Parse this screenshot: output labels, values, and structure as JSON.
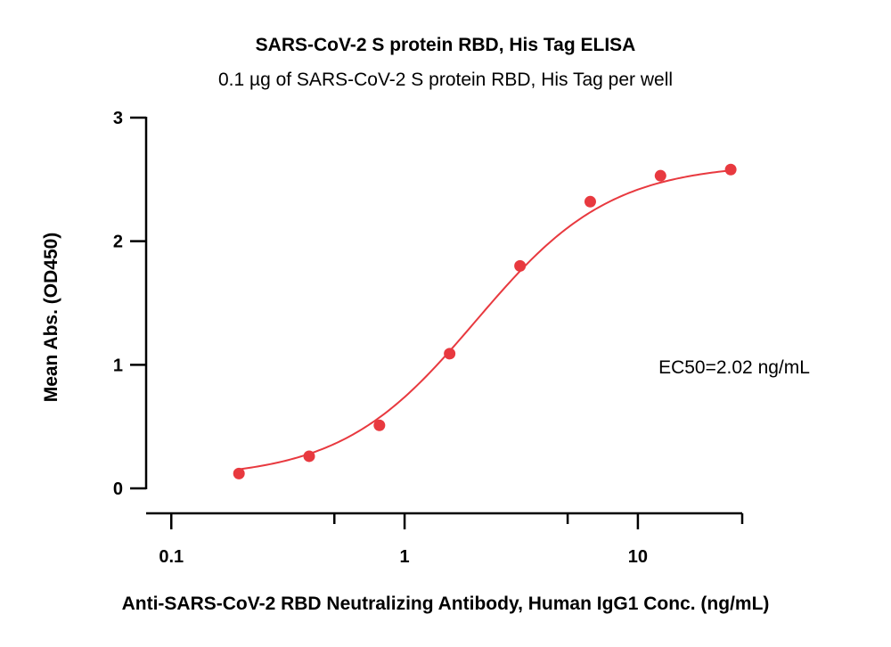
{
  "chart_data": {
    "type": "scatter",
    "title": "SARS-CoV-2 S protein RBD, His Tag ELISA",
    "subtitle": "0.1 µg of SARS-CoV-2 S protein RBD, His Tag per well",
    "xlabel": "Anti-SARS-CoV-2 RBD Neutralizing Antibody, Human IgG1 Conc. (ng/mL)",
    "ylabel": "Mean Abs. (OD450)",
    "x_scale": "log",
    "xlim": [
      0.078,
      28
    ],
    "ylim": [
      0,
      3
    ],
    "x_ticks": [
      {
        "value": 0.1,
        "label": "0.1"
      },
      {
        "value": 1,
        "label": "1"
      },
      {
        "value": 10,
        "label": "10"
      }
    ],
    "y_ticks": [
      {
        "value": 0,
        "label": "0"
      },
      {
        "value": 1,
        "label": "1"
      },
      {
        "value": 2,
        "label": "2"
      },
      {
        "value": 3,
        "label": "3"
      }
    ],
    "series": [
      {
        "color": "#e8393f",
        "x": [
          0.195,
          0.39,
          0.78,
          1.56,
          3.125,
          6.25,
          12.5,
          25
        ],
        "y": [
          0.12,
          0.26,
          0.51,
          1.09,
          1.8,
          2.32,
          2.53,
          2.58
        ],
        "fit": "4PL",
        "fit_params": {
          "bottom": 0.08,
          "top": 2.63,
          "ec50": 2.02,
          "hill": 1.5
        }
      }
    ],
    "annotations": [
      {
        "text": "EC50=2.02 ng/mL"
      }
    ],
    "grid": false,
    "legend": "none"
  }
}
